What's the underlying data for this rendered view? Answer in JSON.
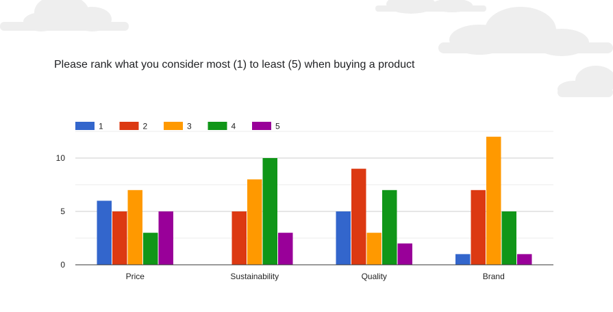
{
  "question": {
    "title": "Please rank what you consider most (1) to least (5) when buying a product"
  },
  "chart_data": {
    "type": "bar",
    "categories": [
      "Price",
      "Sustainability",
      "Quality",
      "Brand"
    ],
    "series": [
      {
        "name": "1",
        "color": "#3366cc",
        "values": [
          6,
          0,
          5,
          1
        ]
      },
      {
        "name": "2",
        "color": "#dc3912",
        "values": [
          5,
          5,
          9,
          7
        ]
      },
      {
        "name": "3",
        "color": "#ff9900",
        "values": [
          7,
          8,
          3,
          12
        ]
      },
      {
        "name": "4",
        "color": "#109618",
        "values": [
          3,
          10,
          7,
          5
        ]
      },
      {
        "name": "5",
        "color": "#990099",
        "values": [
          5,
          3,
          2,
          1
        ]
      }
    ],
    "yticks": [
      0,
      5,
      10
    ],
    "ylim": [
      0,
      12.5
    ],
    "gridlines": [
      2.5,
      5,
      7.5,
      10,
      12.5
    ],
    "grid": true,
    "legend_position": "top-left",
    "title": "",
    "xlabel": "",
    "ylabel": ""
  }
}
